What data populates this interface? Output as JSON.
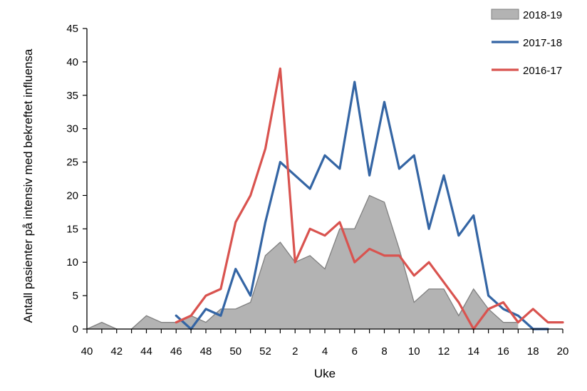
{
  "chart_data": {
    "type": "line",
    "title": "",
    "xlabel": "Uke",
    "ylabel": "Antall pasienter på intensiv med bekreftet influensa",
    "ylim": [
      0,
      45
    ],
    "yticks": [
      "0",
      "5",
      "10",
      "15",
      "20",
      "25",
      "30",
      "35",
      "40",
      "45"
    ],
    "week_sequence": [
      "40",
      "41",
      "42",
      "43",
      "44",
      "45",
      "46",
      "47",
      "48",
      "49",
      "50",
      "51",
      "52",
      "1",
      "2",
      "3",
      "4",
      "5",
      "6",
      "7",
      "8",
      "9",
      "10",
      "11",
      "12",
      "13",
      "14",
      "15",
      "16",
      "17",
      "18",
      "19",
      "20"
    ],
    "xtick_labels": [
      "40",
      "42",
      "44",
      "46",
      "48",
      "50",
      "52",
      "2",
      "4",
      "6",
      "8",
      "10",
      "12",
      "14",
      "16",
      "18",
      "20"
    ],
    "legend_position": "top-right",
    "grid": false,
    "series": [
      {
        "name": "2018-19",
        "style": "area",
        "color": "#b3b3b3",
        "line_color": "#808080",
        "values": [
          0,
          1,
          0,
          0,
          2,
          1,
          1,
          2,
          1,
          3,
          3,
          4,
          11,
          13,
          10,
          11,
          9,
          15,
          15,
          20,
          19,
          12,
          4,
          6,
          6,
          2,
          6,
          3,
          1,
          1,
          null,
          null,
          null
        ]
      },
      {
        "name": "2017-18",
        "style": "line",
        "color": "#3465a4",
        "values": [
          null,
          null,
          null,
          null,
          null,
          null,
          2,
          0,
          3,
          2,
          9,
          5,
          16,
          25,
          23,
          21,
          26,
          24,
          37,
          23,
          34,
          24,
          26,
          15,
          23,
          14,
          17,
          5,
          3,
          2,
          0,
          0,
          null
        ]
      },
      {
        "name": "2016-17",
        "style": "line",
        "color": "#d9534f",
        "values": [
          null,
          null,
          null,
          null,
          null,
          null,
          1,
          2,
          5,
          6,
          16,
          20,
          27,
          39,
          10,
          15,
          14,
          16,
          10,
          12,
          11,
          11,
          8,
          10,
          7,
          4,
          0,
          3,
          4,
          1,
          3,
          1,
          1
        ]
      }
    ]
  }
}
